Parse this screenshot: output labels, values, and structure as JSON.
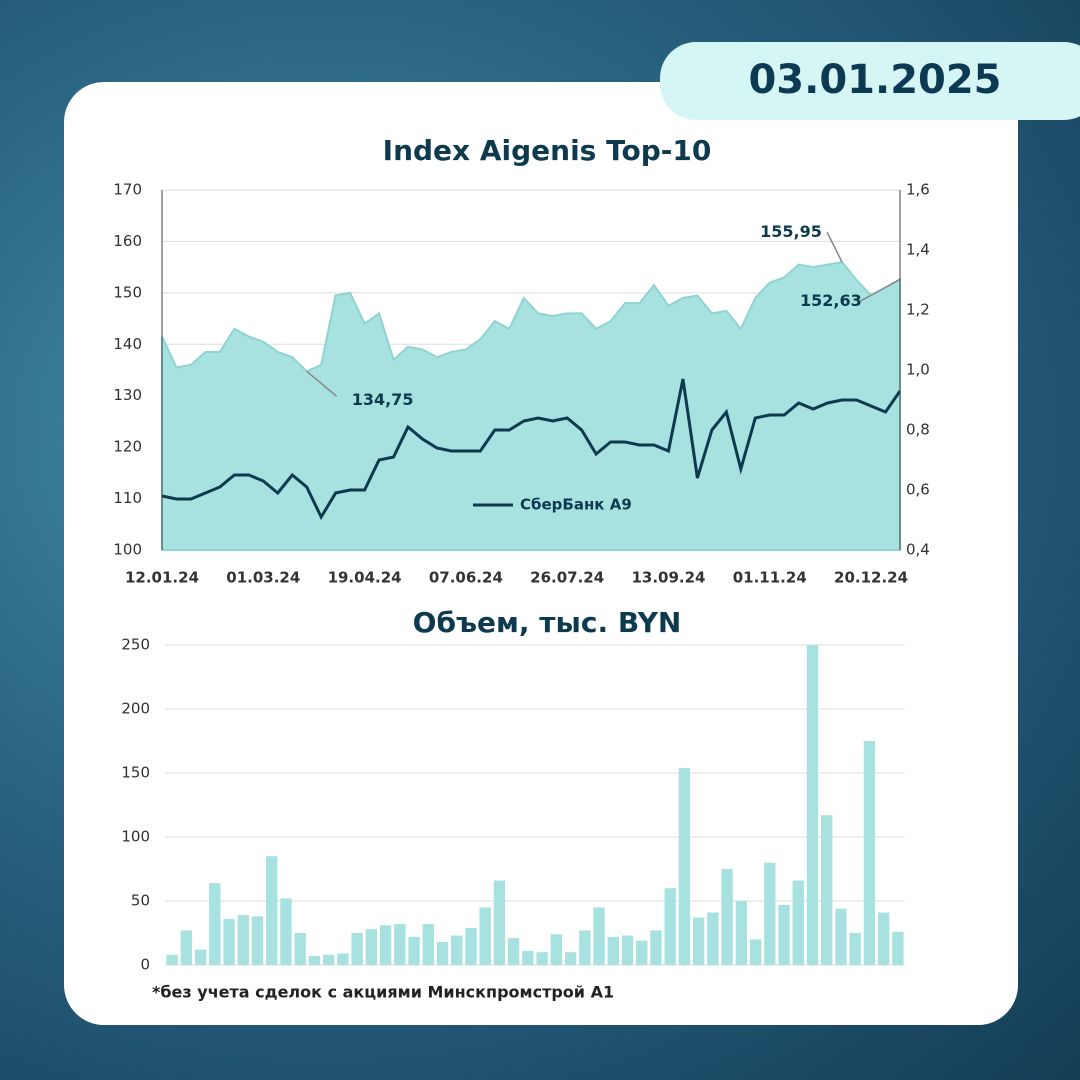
{
  "date": "03.01.2025",
  "footnote": "*без учета сделок с акциями Минскпромстрой А1",
  "chart_data": [
    {
      "type": "area-line",
      "title": "Index Aigenis Top-10",
      "categories": [
        "12.01.24",
        null,
        null,
        null,
        null,
        null,
        null,
        "01.03.24",
        null,
        null,
        null,
        null,
        null,
        null,
        "19.04.24",
        null,
        null,
        null,
        null,
        null,
        null,
        "07.06.24",
        null,
        null,
        null,
        null,
        null,
        null,
        "26.07.24",
        null,
        null,
        null,
        null,
        null,
        null,
        "13.09.24",
        null,
        null,
        null,
        null,
        null,
        null,
        "01.11.24",
        null,
        null,
        null,
        null,
        null,
        null,
        "20.12.24",
        null,
        null
      ],
      "series": [
        {
          "color": "#a8e2e0",
          "axis": "y",
          "values": [
            141.5,
            135.5,
            136,
            138.5,
            138.5,
            143,
            141.5,
            140.5,
            138.5,
            137.5,
            134.75,
            136,
            149.5,
            150,
            144,
            146,
            137,
            139.5,
            139,
            137.5,
            138.5,
            139,
            141,
            144.5,
            143,
            149,
            146,
            145.5,
            146,
            146,
            143,
            144.5,
            148,
            148,
            151.5,
            147.5,
            149,
            149.5,
            146,
            146.5,
            143,
            149,
            152,
            153,
            155.5,
            155,
            155.5,
            155.95,
            152.5,
            149.5,
            151,
            152.63
          ],
          "value_labels": [
            null,
            null,
            null,
            null,
            null,
            null,
            null,
            null,
            null,
            null,
            "134,75",
            null,
            null,
            null,
            null,
            null,
            null,
            null,
            null,
            null,
            null,
            null,
            null,
            null,
            null,
            null,
            null,
            null,
            null,
            null,
            null,
            null,
            null,
            null,
            null,
            null,
            null,
            null,
            null,
            null,
            null,
            null,
            null,
            null,
            null,
            null,
            null,
            "155,95",
            null,
            null,
            null,
            "152,63"
          ]
        },
        {
          "name": "СберБанк А9",
          "color": "#0d3a4f",
          "axis": "y2",
          "values": [
            0.58,
            0.57,
            0.57,
            0.59,
            0.61,
            0.65,
            0.65,
            0.63,
            0.59,
            0.65,
            0.61,
            0.51,
            0.59,
            0.6,
            0.6,
            0.7,
            0.71,
            0.81,
            0.77,
            0.74,
            0.73,
            0.73,
            0.73,
            0.8,
            0.8,
            0.83,
            0.84,
            0.83,
            0.84,
            0.8,
            0.72,
            0.76,
            0.76,
            0.75,
            0.75,
            0.73,
            0.97,
            0.64,
            0.8,
            0.86,
            0.67,
            0.84,
            0.85,
            0.85,
            0.89,
            0.87,
            0.89,
            0.9,
            0.9,
            0.88,
            0.86,
            0.93
          ]
        }
      ],
      "ylim": [
        100,
        170
      ],
      "yticks": [
        100,
        110,
        120,
        130,
        140,
        150,
        160,
        170
      ],
      "y2lim": [
        0.4,
        1.6
      ],
      "y2ticks": [
        {
          "value": 0.4,
          "label": "0,4"
        },
        {
          "value": 0.6,
          "label": "0,6"
        },
        {
          "value": 0.8,
          "label": "0,8"
        },
        {
          "value": 1.0,
          "label": "1,0"
        },
        {
          "value": 1.2,
          "label": "1,2"
        },
        {
          "value": 1.4,
          "label": "1,4"
        },
        {
          "value": 1.6,
          "label": "1,6"
        }
      ],
      "grid": true
    },
    {
      "type": "bar",
      "title": "Объем, тыс. BYN",
      "categories": [
        null,
        null,
        null,
        null,
        null,
        null,
        null,
        null,
        null,
        null,
        null,
        null,
        null,
        null,
        null,
        null,
        null,
        null,
        null,
        null,
        null,
        null,
        null,
        null,
        null,
        null,
        null,
        null,
        null,
        null,
        null,
        null,
        null,
        null,
        null,
        null,
        null,
        null,
        null,
        null,
        null,
        null,
        null,
        null,
        null,
        null,
        null,
        null,
        null,
        null,
        null,
        null
      ],
      "values": [
        8,
        27,
        12,
        64,
        36,
        39,
        38,
        85,
        52,
        25,
        7,
        8,
        9,
        25,
        28,
        31,
        32,
        22,
        32,
        18,
        23,
        29,
        45,
        66,
        21,
        11,
        10,
        24,
        10,
        27,
        45,
        22,
        23,
        19,
        27,
        60,
        154,
        37,
        41,
        75,
        50,
        20,
        80,
        47,
        66,
        250,
        117,
        44,
        25,
        175,
        41,
        26
      ],
      "color": "#a8e2e0",
      "ylim": [
        0,
        250
      ],
      "yticks": [
        0,
        50,
        100,
        150,
        200,
        250
      ],
      "grid": true
    }
  ]
}
